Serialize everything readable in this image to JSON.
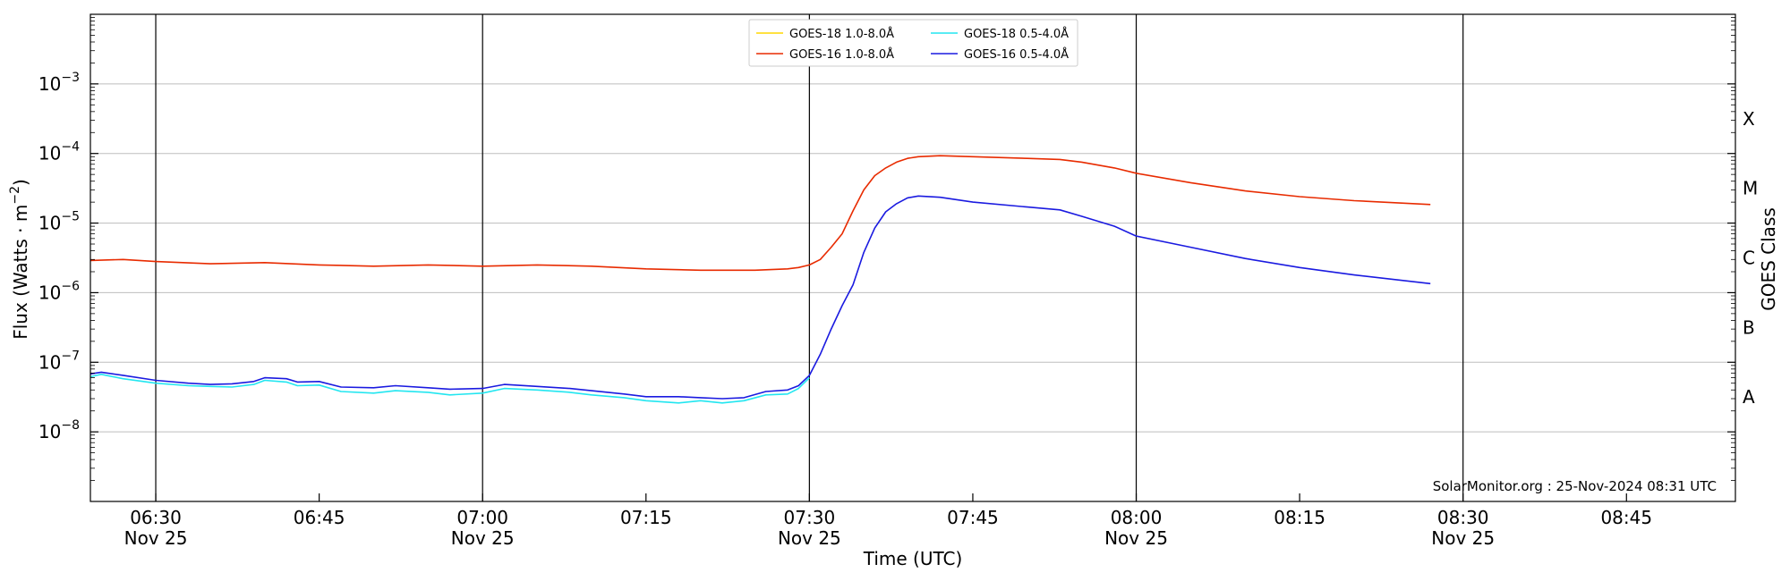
{
  "chart_data": {
    "type": "line",
    "xlabel": "Time (UTC)",
    "ylabel": "Flux (Watts · m",
    "ylabel_superscript": "−2",
    "ylabel_suffix": ")",
    "y2label": "GOES Class",
    "yscale": "log",
    "xlim": [
      "06:24",
      "08:55"
    ],
    "ylim": [
      1e-09,
      0.01
    ],
    "y_ticks": [
      {
        "value": 1e-08,
        "base": "10",
        "exp": "−8"
      },
      {
        "value": 1e-07,
        "base": "10",
        "exp": "−7"
      },
      {
        "value": 1e-06,
        "base": "10",
        "exp": "−6"
      },
      {
        "value": 1e-05,
        "base": "10",
        "exp": "−5"
      },
      {
        "value": 0.0001,
        "base": "10",
        "exp": "−4"
      },
      {
        "value": 0.001,
        "base": "10",
        "exp": "−3"
      }
    ],
    "x_ticks": [
      {
        "time": "06:30",
        "label": "06:30",
        "date": "Nov 25",
        "vline": true
      },
      {
        "time": "06:45",
        "label": "06:45",
        "date": "",
        "vline": false
      },
      {
        "time": "07:00",
        "label": "07:00",
        "date": "Nov 25",
        "vline": true
      },
      {
        "time": "07:15",
        "label": "07:15",
        "date": "",
        "vline": false
      },
      {
        "time": "07:30",
        "label": "07:30",
        "date": "Nov 25",
        "vline": true
      },
      {
        "time": "07:45",
        "label": "07:45",
        "date": "",
        "vline": false
      },
      {
        "time": "08:00",
        "label": "08:00",
        "date": "Nov 25",
        "vline": true
      },
      {
        "time": "08:15",
        "label": "08:15",
        "date": "",
        "vline": false
      },
      {
        "time": "08:30",
        "label": "08:30",
        "date": "Nov 25",
        "vline": true
      },
      {
        "time": "08:45",
        "label": "08:45",
        "date": "",
        "vline": false
      }
    ],
    "goes_classes": [
      {
        "label": "A",
        "value": 1e-08
      },
      {
        "label": "B",
        "value": 1e-07
      },
      {
        "label": "C",
        "value": 1e-06
      },
      {
        "label": "M",
        "value": 1e-05
      },
      {
        "label": "X",
        "value": 0.0001
      }
    ],
    "grid": "horizontal at decades",
    "legend_placement": "top-center",
    "legend": [
      {
        "name": "GOES-18 1.0-8.0Å",
        "color": "#ffd700"
      },
      {
        "name": "GOES-16 1.0-8.0Å",
        "color": "#e82b00"
      },
      {
        "name": "GOES-18 0.5-4.0Å",
        "color": "#22e6f0"
      },
      {
        "name": "GOES-16 0.5-4.0Å",
        "color": "#1a1ae0"
      }
    ],
    "annotation": "SolarMonitor.org : 25-Nov-2024 08:31 UTC",
    "series": [
      {
        "name": "GOES-16 1.0-8.0Å",
        "color": "#e82b00",
        "x": [
          "06:24",
          "06:27",
          "06:30",
          "06:35",
          "06:40",
          "06:45",
          "06:50",
          "06:55",
          "07:00",
          "07:05",
          "07:10",
          "07:15",
          "07:20",
          "07:25",
          "07:28",
          "07:29",
          "07:30",
          "07:31",
          "07:32",
          "07:33",
          "07:34",
          "07:35",
          "07:36",
          "07:37",
          "07:38",
          "07:39",
          "07:40",
          "07:42",
          "07:45",
          "07:50",
          "07:53",
          "07:55",
          "07:58",
          "08:00",
          "08:05",
          "08:10",
          "08:15",
          "08:20",
          "08:27"
        ],
        "y": [
          2.9e-06,
          3e-06,
          2.8e-06,
          2.6e-06,
          2.7e-06,
          2.5e-06,
          2.4e-06,
          2.5e-06,
          2.4e-06,
          2.5e-06,
          2.4e-06,
          2.2e-06,
          2.1e-06,
          2.1e-06,
          2.2e-06,
          2.3e-06,
          2.5e-06,
          3e-06,
          4.5e-06,
          7e-06,
          1.5e-05,
          3e-05,
          4.8e-05,
          6.2e-05,
          7.5e-05,
          8.5e-05,
          9e-05,
          9.3e-05,
          9e-05,
          8.5e-05,
          8.2e-05,
          7.5e-05,
          6.2e-05,
          5.2e-05,
          3.8e-05,
          2.9e-05,
          2.4e-05,
          2.1e-05,
          1.85e-05
        ]
      },
      {
        "name": "GOES-16 0.5-4.0Å",
        "color": "#1a1ae0",
        "x": [
          "06:24",
          "06:25",
          "06:27",
          "06:30",
          "06:33",
          "06:35",
          "06:37",
          "06:39",
          "06:40",
          "06:42",
          "06:43",
          "06:45",
          "06:47",
          "06:50",
          "06:52",
          "06:55",
          "06:57",
          "07:00",
          "07:02",
          "07:05",
          "07:08",
          "07:10",
          "07:13",
          "07:15",
          "07:18",
          "07:20",
          "07:22",
          "07:24",
          "07:26",
          "07:28",
          "07:29",
          "07:30",
          "07:31",
          "07:32",
          "07:33",
          "07:34",
          "07:35",
          "07:36",
          "07:37",
          "07:38",
          "07:39",
          "07:40",
          "07:42",
          "07:45",
          "07:50",
          "07:53",
          "07:55",
          "07:58",
          "08:00",
          "08:05",
          "08:10",
          "08:15",
          "08:20",
          "08:27"
        ],
        "y": [
          6.8e-08,
          7.2e-08,
          6.5e-08,
          5.5e-08,
          5e-08,
          4.8e-08,
          4.9e-08,
          5.3e-08,
          6e-08,
          5.8e-08,
          5.2e-08,
          5.3e-08,
          4.4e-08,
          4.3e-08,
          4.6e-08,
          4.3e-08,
          4.1e-08,
          4.2e-08,
          4.8e-08,
          4.5e-08,
          4.2e-08,
          3.9e-08,
          3.5e-08,
          3.2e-08,
          3.2e-08,
          3.1e-08,
          3e-08,
          3.1e-08,
          3.8e-08,
          4e-08,
          4.6e-08,
          6.5e-08,
          1.3e-07,
          3e-07,
          6.5e-07,
          1.3e-06,
          3.8e-06,
          8.5e-06,
          1.45e-05,
          1.9e-05,
          2.3e-05,
          2.45e-05,
          2.35e-05,
          2e-05,
          1.7e-05,
          1.55e-05,
          1.25e-05,
          9e-06,
          6.5e-06,
          4.5e-06,
          3.1e-06,
          2.3e-06,
          1.8e-06,
          1.35e-06
        ]
      },
      {
        "name": "GOES-18 0.5-4.0Å",
        "color": "#22e6f0",
        "x": [
          "06:24",
          "06:25",
          "06:27",
          "06:30",
          "06:33",
          "06:35",
          "06:37",
          "06:39",
          "06:40",
          "06:42",
          "06:43",
          "06:45",
          "06:47",
          "06:50",
          "06:52",
          "06:55",
          "06:57",
          "07:00",
          "07:02",
          "07:05",
          "07:08",
          "07:10",
          "07:13",
          "07:15",
          "07:18",
          "07:20",
          "07:22",
          "07:24",
          "07:26",
          "07:28",
          "07:29",
          "07:30"
        ],
        "y": [
          6.2e-08,
          6.7e-08,
          5.8e-08,
          5e-08,
          4.6e-08,
          4.5e-08,
          4.4e-08,
          4.8e-08,
          5.5e-08,
          5.2e-08,
          4.6e-08,
          4.7e-08,
          3.8e-08,
          3.6e-08,
          3.9e-08,
          3.7e-08,
          3.4e-08,
          3.6e-08,
          4.2e-08,
          4e-08,
          3.7e-08,
          3.4e-08,
          3.1e-08,
          2.8e-08,
          2.6e-08,
          2.8e-08,
          2.6e-08,
          2.8e-08,
          3.4e-08,
          3.5e-08,
          4.2e-08,
          6e-08
        ]
      },
      {
        "name": "GOES-18 1.0-8.0Å",
        "color": "#ffd700",
        "x": [],
        "y": []
      }
    ]
  }
}
